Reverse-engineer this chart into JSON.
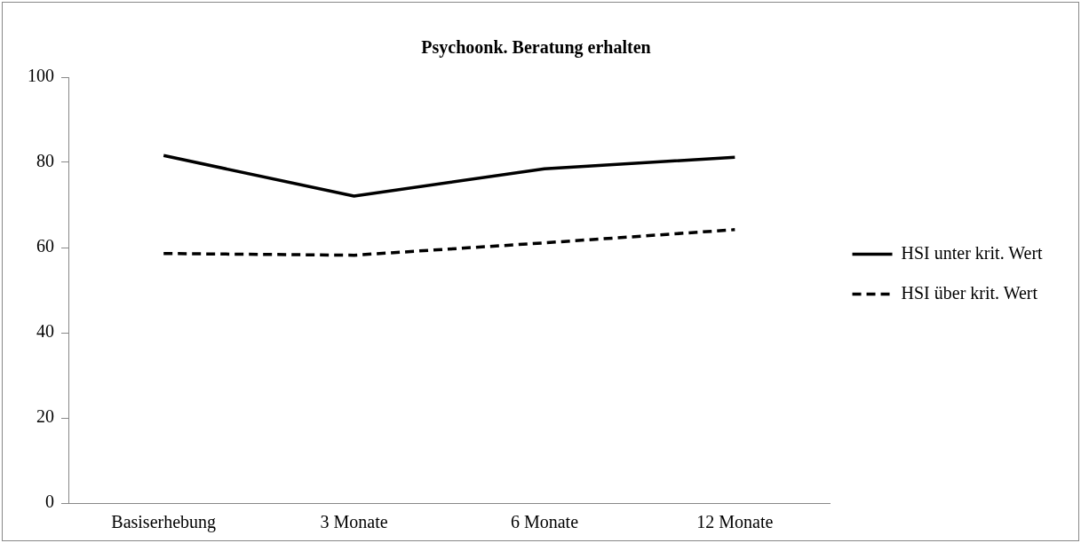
{
  "chart_data": {
    "type": "line",
    "title": "Psychoonk. Beratung erhalten",
    "categories": [
      "Basiserhebung",
      "3 Monate",
      "6 Monate",
      "12 Monate"
    ],
    "series": [
      {
        "name": "HSI unter krit. Wert",
        "color": "#000000",
        "values": [
          81.6,
          72.1,
          78.5,
          81.2
        ],
        "line_style": "solid"
      },
      {
        "name": "HSI über krit. Wert",
        "color": "#000000",
        "values": [
          58.6,
          58.2,
          61.1,
          64.2
        ],
        "line_style": "dashed"
      }
    ],
    "ylim": [
      0,
      100
    ],
    "yticks": [
      0,
      20,
      40,
      60,
      80,
      100
    ],
    "grid": false,
    "legend": "right",
    "marker": "none"
  }
}
